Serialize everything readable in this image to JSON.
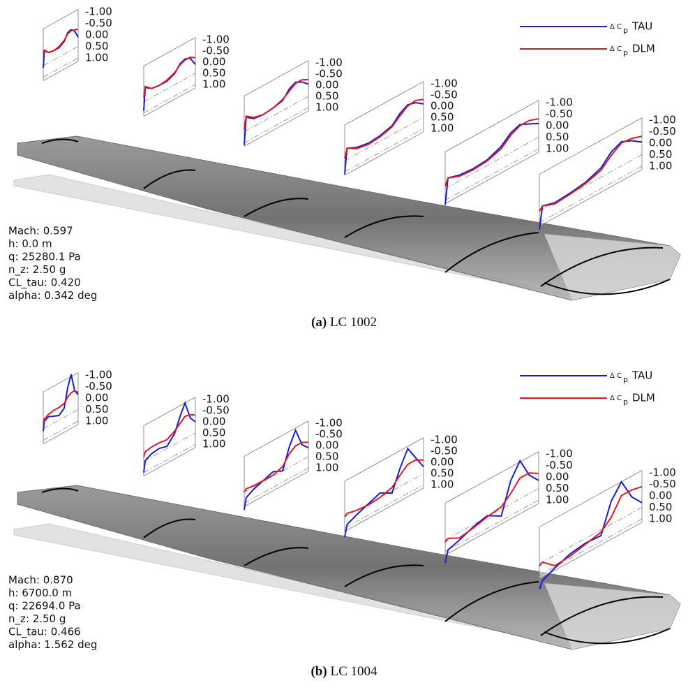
{
  "ticks": [
    {
      "value": -1,
      "label": "-1.00"
    },
    {
      "value": -0.5,
      "label": "-0.50"
    },
    {
      "value": 0,
      "label": "0.00"
    },
    {
      "value": 0.5,
      "label": "0.50"
    },
    {
      "value": 1,
      "label": "1.00"
    }
  ],
  "x": [
    0,
    0.03,
    0.15,
    0.3,
    0.45,
    0.6,
    0.7,
    0.8,
    0.9,
    1
  ],
  "legend": {
    "symbol": "Δ C",
    "subscript": "p",
    "series": [
      {
        "name": "TAU",
        "color": "#1a1ad6"
      },
      {
        "name": "DLM",
        "color": "#e01a1a"
      }
    ]
  },
  "panels": [
    {
      "label": "(a)",
      "caption": "LC 1002",
      "info": [
        "Mach: 0.597",
        "h: 0.0 m",
        "q: 25280.1 Pa",
        "n_z: 2.50 g",
        "CL_tau: 0.420",
        "alpha: 0.342 deg"
      ],
      "sections": [
        {
          "TAU": [
            0.6,
            -0.1,
            0.05,
            0.1,
            0.1,
            -0.05,
            -0.35,
            -0.4,
            -0.25,
            0.1
          ],
          "DLM": [
            0.0,
            -0.15,
            0.05,
            0.1,
            0.05,
            -0.1,
            -0.3,
            -0.35,
            -0.3,
            -0.25
          ]
        },
        {
          "TAU": [
            0.9,
            -0.1,
            0.1,
            0.15,
            0.15,
            0.0,
            -0.3,
            -0.4,
            -0.3,
            0.1
          ],
          "DLM": [
            0.3,
            -0.15,
            0.1,
            0.15,
            0.1,
            -0.05,
            -0.25,
            -0.35,
            -0.35,
            -0.2
          ]
        },
        {
          "TAU": [
            1.1,
            -0.1,
            0.15,
            0.2,
            0.15,
            0.05,
            -0.3,
            -0.45,
            -0.3,
            -0.05
          ],
          "DLM": [
            0.4,
            -0.15,
            0.1,
            0.2,
            0.15,
            0.0,
            -0.2,
            -0.4,
            -0.4,
            -0.25
          ]
        },
        {
          "TAU": [
            1.1,
            0.0,
            0.2,
            0.3,
            0.25,
            0.1,
            -0.25,
            -0.45,
            -0.35,
            -0.1
          ],
          "DLM": [
            0.4,
            0.0,
            0.25,
            0.35,
            0.3,
            0.15,
            -0.15,
            -0.4,
            -0.45,
            -0.3
          ]
        },
        {
          "TAU": [
            1.2,
            0.1,
            0.25,
            0.3,
            0.25,
            0.0,
            -0.35,
            -0.5,
            -0.3,
            -0.1
          ],
          "DLM": [
            0.4,
            0.1,
            0.3,
            0.35,
            0.3,
            0.1,
            -0.25,
            -0.45,
            -0.45,
            -0.3
          ]
        },
        {
          "TAU": [
            1.3,
            0.35,
            0.5,
            0.45,
            0.35,
            0.1,
            -0.35,
            -0.55,
            -0.35,
            -0.05
          ],
          "DLM": [
            0.5,
            0.35,
            0.55,
            0.5,
            0.4,
            0.2,
            -0.2,
            -0.5,
            -0.45,
            -0.3
          ]
        }
      ]
    },
    {
      "label": "(b)",
      "caption": "LC 1004",
      "info": [
        "Mach: 0.870",
        "h: 6700.0 m",
        "q: 22694.0 Pa",
        "n_z: 2.50 g",
        "CL_tau: 0.466",
        "alpha: 1.562 deg"
      ],
      "sections": [
        {
          "TAU": [
            0.6,
            0.2,
            0.1,
            0.2,
            0.3,
            0.1,
            -0.7,
            -1.2,
            -0.4,
            -0.15
          ],
          "DLM": [
            0.3,
            0.1,
            0.0,
            -0.05,
            -0.05,
            -0.1,
            -0.3,
            -0.4,
            -0.4,
            -0.25
          ]
        },
        {
          "TAU": [
            1.0,
            0.5,
            0.35,
            0.3,
            0.4,
            0.0,
            -0.6,
            -1.1,
            -0.3,
            0.0
          ],
          "DLM": [
            0.3,
            0.1,
            0.05,
            0.05,
            0.1,
            -0.1,
            -0.3,
            -0.5,
            -0.45,
            -0.3
          ]
        },
        {
          "TAU": [
            1.3,
            0.8,
            0.6,
            0.45,
            0.3,
            0.5,
            -0.4,
            -1.0,
            -0.2,
            0.1
          ],
          "DLM": [
            0.5,
            0.4,
            0.45,
            0.45,
            0.45,
            0.3,
            -0.1,
            -0.3,
            -0.3,
            -0.15
          ]
        },
        {
          "TAU": [
            1.4,
            0.9,
            0.7,
            0.5,
            0.3,
            0.6,
            -0.3,
            -1.0,
            -0.4,
            0.2
          ],
          "DLM": [
            0.5,
            0.4,
            0.5,
            0.55,
            0.5,
            0.35,
            0.0,
            -0.3,
            -0.3,
            -0.1
          ]
        },
        {
          "TAU": [
            1.5,
            1.0,
            0.85,
            0.6,
            0.45,
            0.8,
            -0.5,
            -1.15,
            -0.3,
            0.15
          ],
          "DLM": [
            0.6,
            0.5,
            0.75,
            0.65,
            0.5,
            0.4,
            0.05,
            -0.4,
            -0.4,
            -0.15
          ]
        },
        {
          "TAU": [
            1.6,
            1.3,
            1.05,
            0.8,
            0.7,
            0.75,
            -0.5,
            -1.1,
            -0.2,
            0.3
          ],
          "DLM": [
            0.6,
            0.5,
            0.95,
            0.9,
            0.75,
            0.6,
            0.2,
            -0.5,
            -0.5,
            -0.4
          ]
        }
      ]
    }
  ]
}
